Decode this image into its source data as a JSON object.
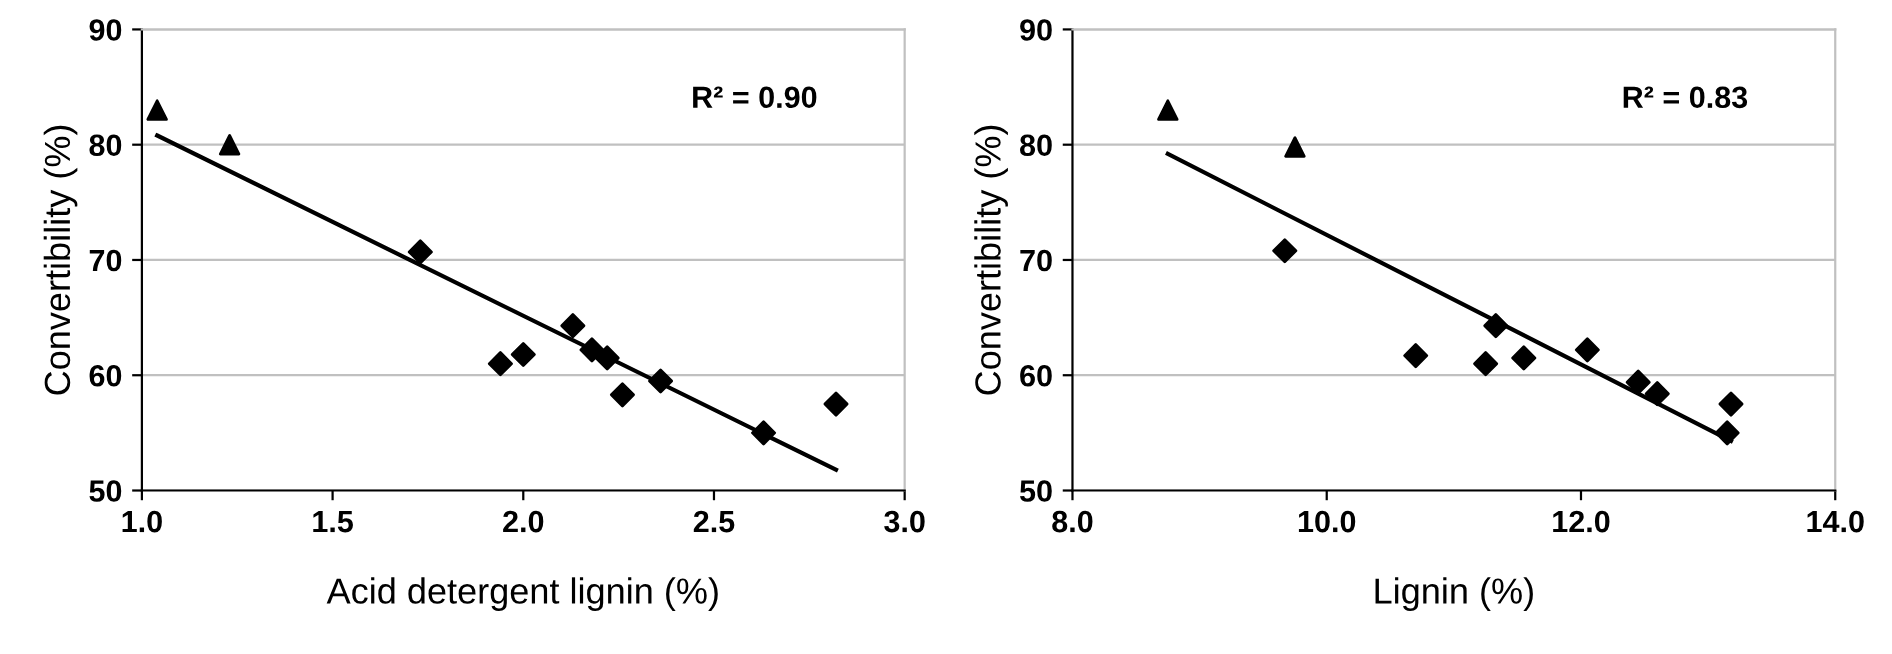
{
  "chart_data": [
    {
      "type": "scatter",
      "xlabel": "Acid detergent lignin (%)",
      "ylabel": "Convertibility (%)",
      "xlim": [
        1.0,
        3.0
      ],
      "ylim": [
        50,
        90
      ],
      "xticks": [
        {
          "value": 1.0,
          "label": "1.0"
        },
        {
          "value": 1.5,
          "label": "1.5"
        },
        {
          "value": 2.0,
          "label": "2.0"
        },
        {
          "value": 2.5,
          "label": "2.5"
        },
        {
          "value": 3.0,
          "label": "3.0"
        }
      ],
      "yticks": [
        50,
        60,
        70,
        80,
        90
      ],
      "grid": "y",
      "annotations": [
        "R² = 0.90"
      ],
      "series": [
        {
          "color": "#000000",
          "marker": "triangle",
          "x": [
            1.04,
            1.23
          ],
          "values": [
            83,
            80
          ]
        },
        {
          "color": "#000000",
          "marker": "diamond",
          "x": [
            1.73,
            1.94,
            2.0,
            2.13,
            2.18,
            2.22,
            2.26,
            2.36,
            2.63,
            2.82
          ],
          "values": [
            70.7,
            61,
            61.8,
            64.3,
            62.2,
            61.5,
            58.3,
            59.5,
            55,
            57.5
          ]
        },
        {
          "type": "line",
          "color": "#000000",
          "marker": "none",
          "x": [
            1.04,
            2.82
          ],
          "values": [
            80.8,
            51.8
          ]
        }
      ]
    },
    {
      "type": "scatter",
      "xlabel": "Lignin (%)",
      "ylabel": "Convertibility (%)",
      "xlim": [
        8.0,
        14.0
      ],
      "ylim": [
        50,
        90
      ],
      "xticks": [
        {
          "value": 8.0,
          "label": "8.0"
        },
        {
          "value": 10.0,
          "label": "10.0"
        },
        {
          "value": 12.0,
          "label": "12.0"
        },
        {
          "value": 14.0,
          "label": "14.0"
        }
      ],
      "yticks": [
        50,
        60,
        70,
        80,
        90
      ],
      "grid": "y",
      "annotations": [
        "R² = 0.83"
      ],
      "series": [
        {
          "color": "#000000",
          "marker": "triangle",
          "x": [
            8.75,
            9.75
          ],
          "values": [
            83,
            79.8
          ]
        },
        {
          "color": "#000000",
          "marker": "diamond",
          "x": [
            9.67,
            10.7,
            11.25,
            11.33,
            11.55,
            12.05,
            12.45,
            12.6,
            13.15,
            13.18
          ],
          "values": [
            70.8,
            61.7,
            61,
            64.3,
            61.5,
            62.2,
            59.4,
            58.4,
            55,
            57.5
          ]
        },
        {
          "type": "line",
          "color": "#000000",
          "marker": "none",
          "x": [
            8.75,
            13.18
          ],
          "values": [
            79.2,
            54.3
          ]
        }
      ]
    }
  ]
}
